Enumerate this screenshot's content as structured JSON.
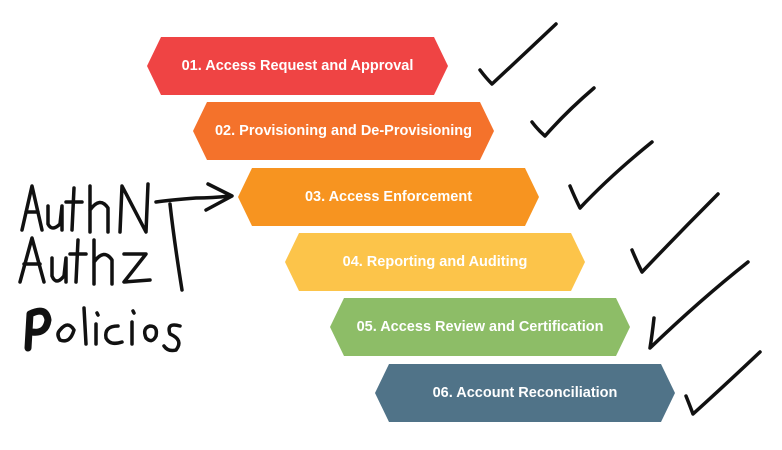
{
  "steps": [
    {
      "label": "01. Access Request and Approval",
      "color": "#ef4444"
    },
    {
      "label": "02. Provisioning and De-Provisioning",
      "color": "#f4722b"
    },
    {
      "label": "03. Access Enforcement",
      "color": "#f79420"
    },
    {
      "label": "04. Reporting and Auditing",
      "color": "#fcc44a"
    },
    {
      "label": "05. Access Review and Certification",
      "color": "#8dbd67"
    },
    {
      "label": "06. Account Reconciliation",
      "color": "#507388"
    }
  ],
  "annotations": {
    "handwritten": [
      "AuthN",
      "AuthZ",
      "Policies"
    ],
    "check_marks": 6
  }
}
